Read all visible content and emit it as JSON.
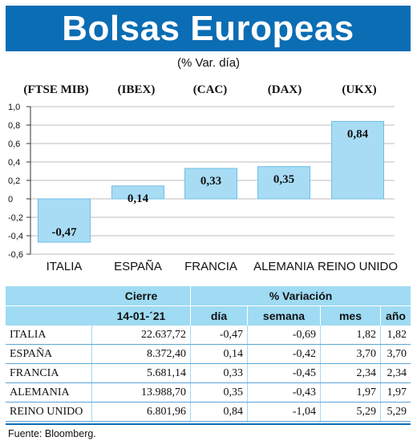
{
  "header": {
    "title": "Bolsas Europeas",
    "subtitle": "(% Var. día)"
  },
  "index_labels": [
    "(FTSE MIB)",
    "(IBEX)",
    "(CAC)",
    "(DAX)",
    "(UKX)"
  ],
  "chart_data": {
    "type": "bar",
    "title": "Bolsas Europeas",
    "subtitle": "(% Var. día)",
    "categories": [
      "ITALIA",
      "ESPAÑA",
      "FRANCIA",
      "ALEMANIA",
      "REINO UNIDO"
    ],
    "values": [
      -0.47,
      0.14,
      0.33,
      0.35,
      0.84
    ],
    "value_labels": [
      "-0,47",
      "0,14",
      "0,33",
      "0,35",
      "0,84"
    ],
    "ylim": [
      -0.6,
      1.0
    ],
    "yticks": [
      1.0,
      0.8,
      0.6,
      0.4,
      0.2,
      0,
      -0.2,
      -0.4,
      -0.6
    ],
    "ytick_labels": [
      "1,0",
      "0,8",
      "0,6",
      "0,4",
      "0,2",
      "0",
      "-0,2",
      "-0,4",
      "-0,6"
    ],
    "bar_color": "#a7dcf4",
    "bar_stroke": "#6fbfe6"
  },
  "table": {
    "header": {
      "cierre": "Cierre",
      "variacion": "% Variación",
      "date": "14-01-´21",
      "dia": "día",
      "semana": "semana",
      "mes": "mes",
      "ano": "año"
    },
    "rows": [
      {
        "pais": "ITALIA",
        "cierre": "22.637,72",
        "dia": "-0,47",
        "semana": "-0,69",
        "mes": "1,82",
        "ano": "1,82"
      },
      {
        "pais": "ESPAÑA",
        "cierre": "8.372,40",
        "dia": "0,14",
        "semana": "-0,42",
        "mes": "3,70",
        "ano": "3,70"
      },
      {
        "pais": "FRANCIA",
        "cierre": "5.681,14",
        "dia": "0,33",
        "semana": "-0,45",
        "mes": "2,34",
        "ano": "2,34"
      },
      {
        "pais": "ALEMANIA",
        "cierre": "13.988,70",
        "dia": "0,35",
        "semana": "-0,43",
        "mes": "1,97",
        "ano": "1,97"
      },
      {
        "pais": "REINO UNIDO",
        "cierre": "6.801,96",
        "dia": "0,84",
        "semana": "-1,04",
        "mes": "5,29",
        "ano": "5,29"
      }
    ]
  },
  "source": "Fuente: Bloomberg.",
  "colors": {
    "banner": "#0b6db4",
    "header_bg": "#9fdbf3"
  }
}
